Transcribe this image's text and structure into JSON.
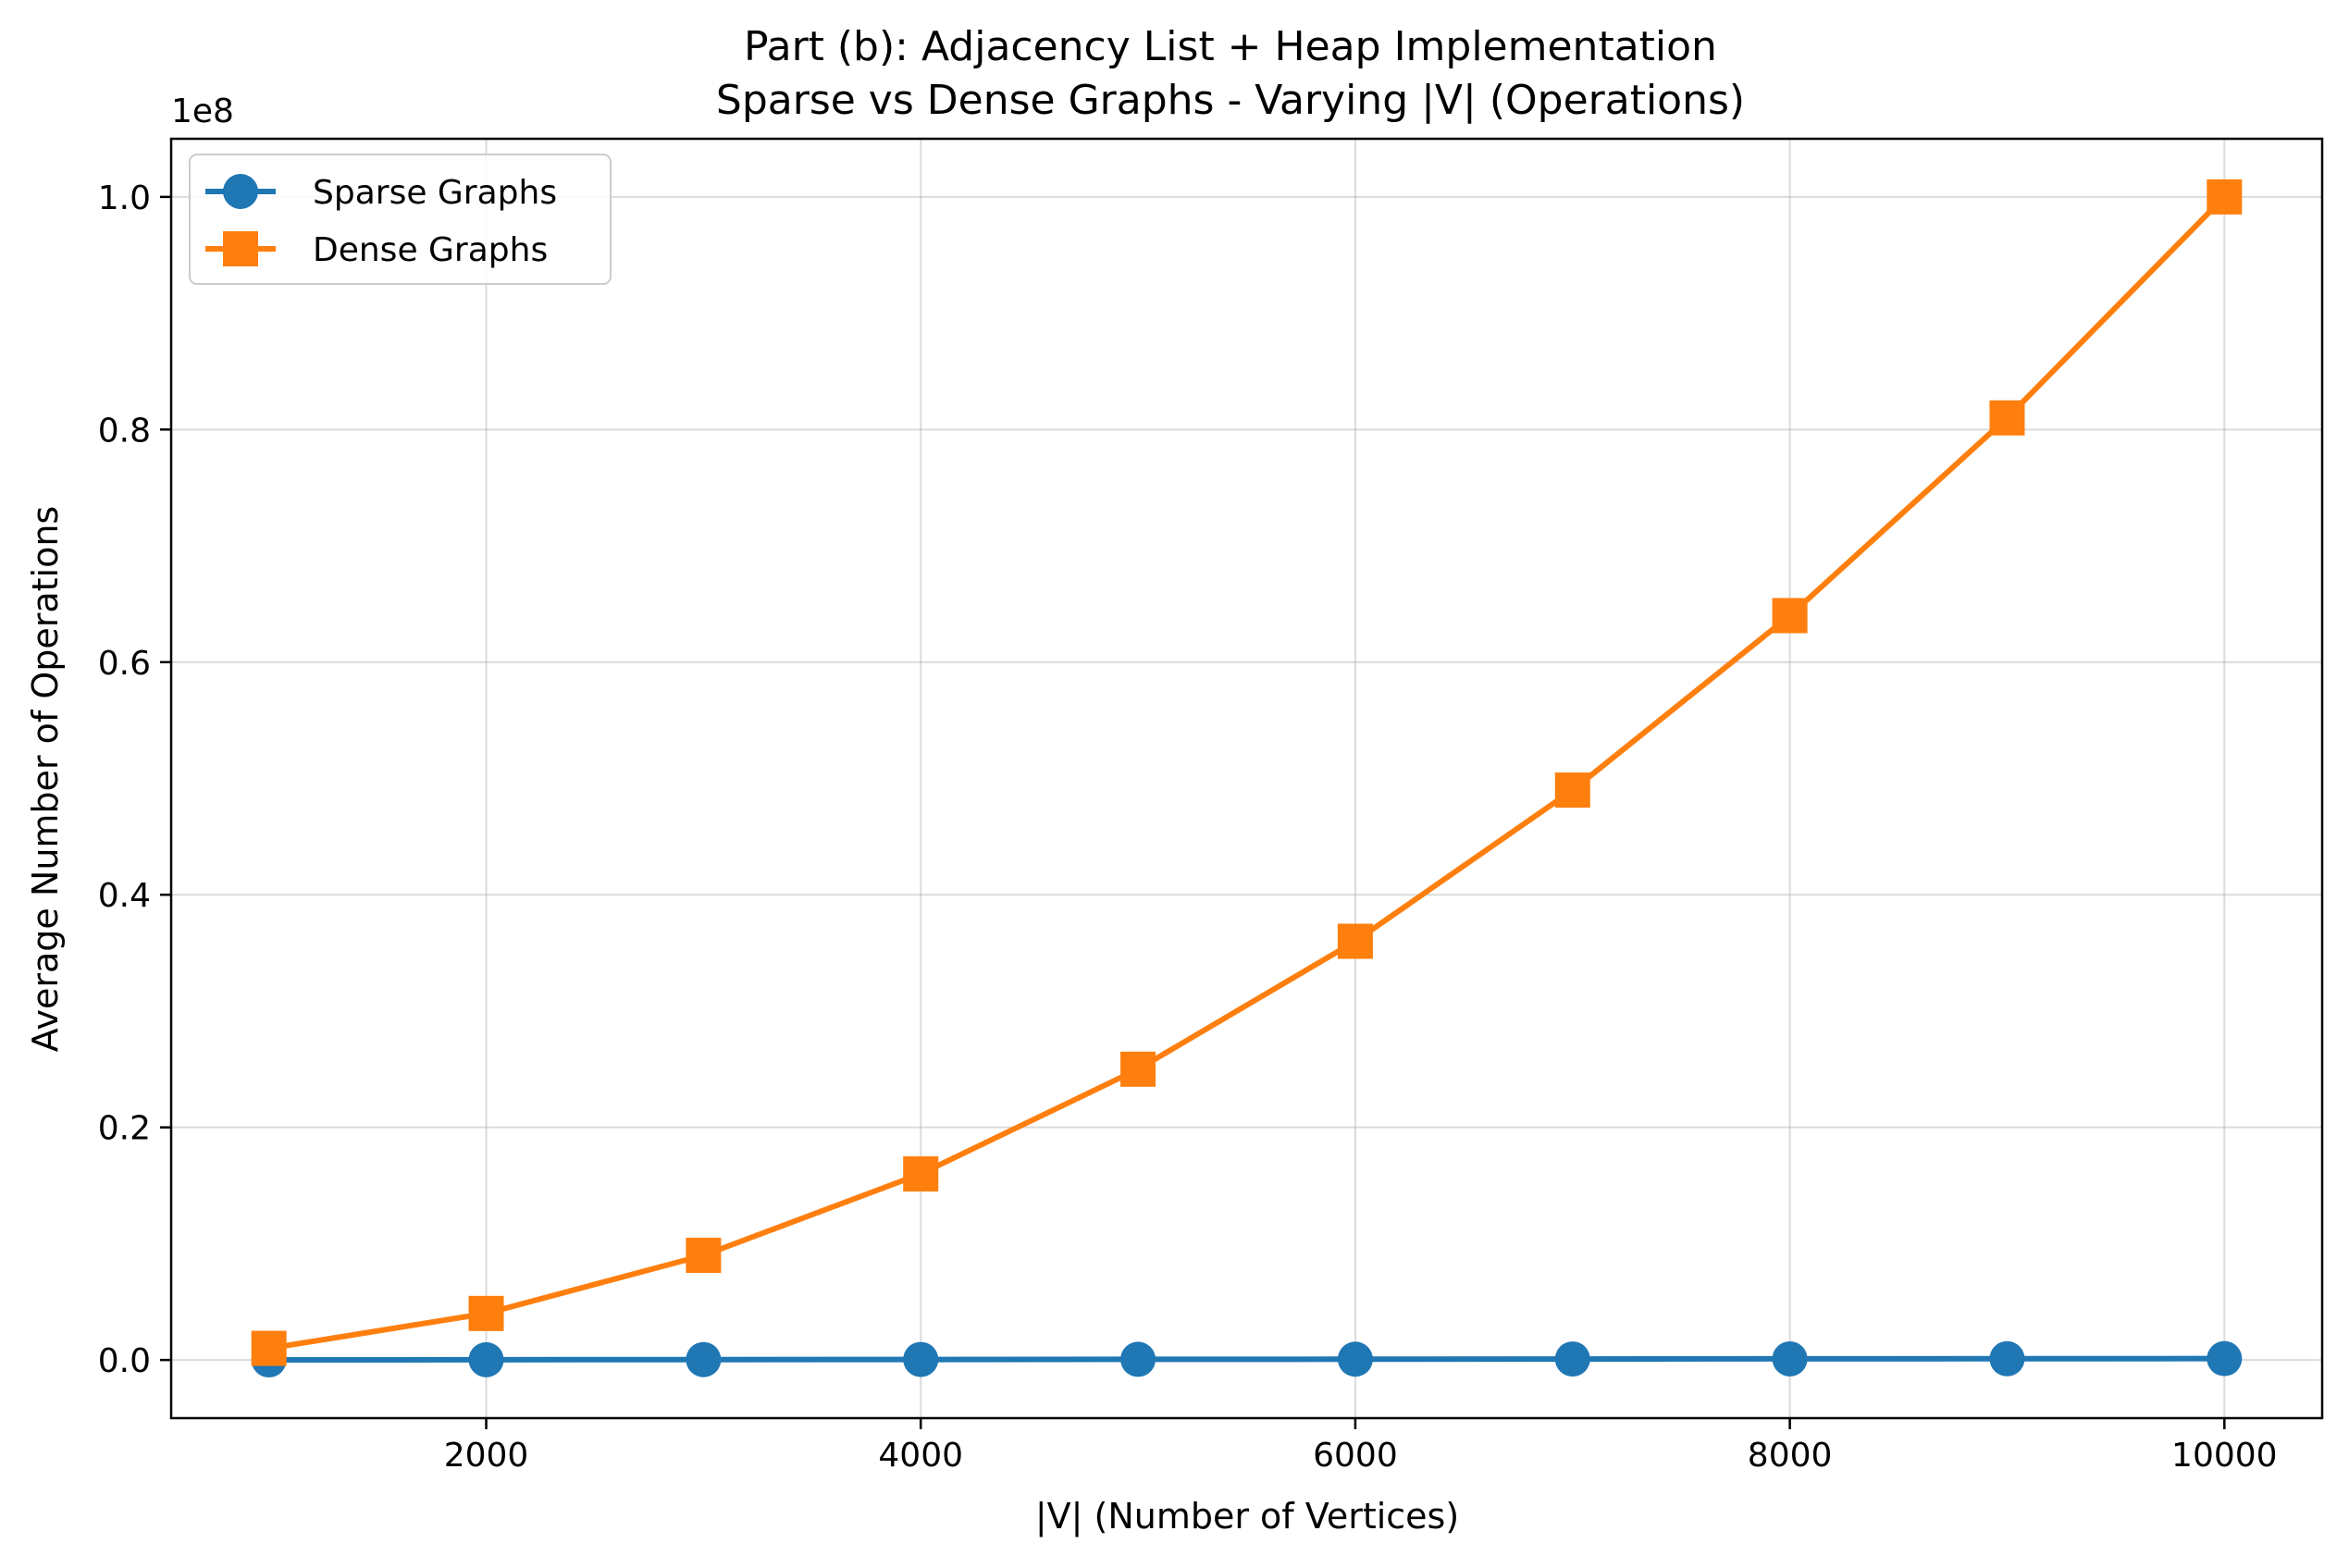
{
  "chart_data": {
    "type": "line",
    "title": "Part (b): Adjacency List + Heap Implementation",
    "subtitle": "Sparse vs Dense Graphs - Varying |V| (Operations)",
    "xlabel": "|V| (Number of Vertices)",
    "ylabel": "Average Number of Operations",
    "y_offset_label": "1e8",
    "y_scale_factor": 100000000,
    "xlim": [
      550,
      10450
    ],
    "ylim": [
      -5000000,
      105000000
    ],
    "x_ticks": [
      2000,
      4000,
      6000,
      8000,
      10000
    ],
    "x_tick_labels": [
      "2000",
      "4000",
      "6000",
      "8000",
      "10000"
    ],
    "y_ticks": [
      0,
      20000000,
      40000000,
      60000000,
      80000000,
      100000000
    ],
    "y_tick_labels": [
      "0.0",
      "0.2",
      "0.4",
      "0.6",
      "0.8",
      "1.0"
    ],
    "grid": true,
    "legend_position": "top-left",
    "x": [
      1000,
      2000,
      3000,
      4000,
      5000,
      6000,
      7000,
      8000,
      9000,
      10000
    ],
    "series": [
      {
        "name": "Sparse Graphs",
        "color": "#1f77b4",
        "marker": "circle",
        "values": [
          10000,
          21000,
          33000,
          45000,
          57000,
          70000,
          82000,
          95000,
          108000,
          120000
        ]
      },
      {
        "name": "Dense Graphs",
        "color": "#ff7f0e",
        "marker": "square",
        "values": [
          1000000,
          4000000,
          9000000,
          16000000,
          25000000,
          36000000,
          49000000,
          64000000,
          81000000,
          100000000
        ]
      }
    ]
  }
}
